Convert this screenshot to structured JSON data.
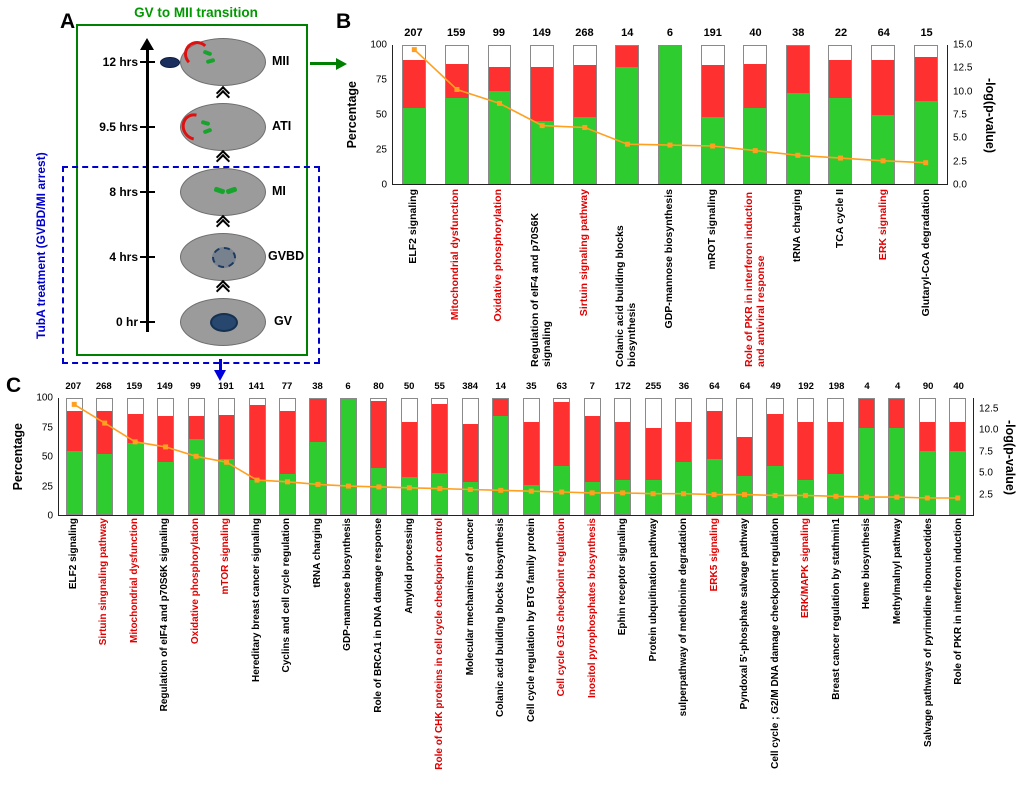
{
  "figure": {
    "panelA": {
      "panel_label": "A",
      "title": "GV to MII transition",
      "side_label": "TubA treatment  (GVBD/MI arrest)",
      "stages": [
        {
          "time": "12 hrs",
          "name": "MII"
        },
        {
          "time": "9.5 hrs",
          "name": "ATI"
        },
        {
          "time": "8 hrs",
          "name": "MI"
        },
        {
          "time": "4 hrs",
          "name": "GVBD"
        },
        {
          "time": "0 hr",
          "name": "GV"
        }
      ]
    },
    "panelB_label": "B",
    "panelC_label": "C"
  },
  "colors": {
    "green_bar": "#2ecc2e",
    "red_bar": "#ff3030",
    "white_bar": "#ffffff",
    "line": "#ffa020",
    "highlight_label": "#e00000",
    "panelA_green": "#008000",
    "panelA_blue": "#0000cd"
  },
  "chart_data": [
    {
      "id": "B",
      "type": "bar",
      "subtype": "stacked-percentage-bars-with-pvalue-line",
      "title": "",
      "ylabel": "Percentage",
      "y2label": "-log(p-value)",
      "ylim": [
        0,
        100
      ],
      "yticks": [
        0,
        25,
        50,
        75,
        100
      ],
      "y2lim": [
        0,
        15
      ],
      "y2ticks": [
        15.0,
        12.5,
        10.0,
        7.5,
        5.0,
        2.5,
        0.0
      ],
      "grid": false,
      "legend": "none",
      "bars": [
        {
          "label": "ELF2 signaling",
          "count": 207,
          "green": 55,
          "red": 35,
          "logp": 14.5,
          "red_label": false
        },
        {
          "label": "Mitochondrial dysfunction",
          "count": 159,
          "green": 62,
          "red": 25,
          "logp": 10.2,
          "red_label": true
        },
        {
          "label": "Oxidative phosphorylation",
          "count": 99,
          "green": 67,
          "red": 18,
          "logp": 8.7,
          "red_label": true
        },
        {
          "label": "Regulation of eIF4 and p70S6K signaling",
          "count": 149,
          "green": 45,
          "red": 40,
          "logp": 6.3,
          "red_label": false
        },
        {
          "label": "Sirtuin signaling pathway",
          "count": 268,
          "green": 48,
          "red": 38,
          "logp": 6.1,
          "red_label": true
        },
        {
          "label": "Colanic acid building blocks biosynthesis",
          "count": 14,
          "green": 85,
          "red": 15,
          "logp": 4.3,
          "red_label": false
        },
        {
          "label": "GDP-mannose biosynthesis",
          "count": 6,
          "green": 100,
          "red": 0,
          "logp": 4.2,
          "red_label": false
        },
        {
          "label": "mROT signaling",
          "count": 191,
          "green": 48,
          "red": 38,
          "logp": 4.1,
          "red_label": false
        },
        {
          "label": "Role of PKR in interferon induction and antiviral response",
          "count": 40,
          "green": 55,
          "red": 32,
          "logp": 3.6,
          "red_label": true
        },
        {
          "label": "tRNA charging",
          "count": 38,
          "green": 66,
          "red": 34,
          "logp": 3.1,
          "red_label": false
        },
        {
          "label": "TCA cycle II",
          "count": 22,
          "green": 62,
          "red": 28,
          "logp": 2.8,
          "red_label": false
        },
        {
          "label": "ERK signaling",
          "count": 64,
          "green": 50,
          "red": 40,
          "logp": 2.5,
          "red_label": true
        },
        {
          "label": "Glutaryl-CoA degradation",
          "count": 15,
          "green": 60,
          "red": 32,
          "logp": 2.3,
          "red_label": false
        }
      ]
    },
    {
      "id": "C",
      "type": "bar",
      "subtype": "stacked-percentage-bars-with-pvalue-line",
      "title": "",
      "ylabel": "Percentage",
      "y2label": "-log(p-value)",
      "ylim": [
        0,
        100
      ],
      "yticks": [
        0,
        25,
        50,
        75,
        100
      ],
      "y2lim": [
        0,
        13.75
      ],
      "y2ticks": [
        12.5,
        10.0,
        7.5,
        5.0,
        2.5
      ],
      "grid": false,
      "legend": "none",
      "bars": [
        {
          "label": "ELF2 signaling",
          "count": 207,
          "green": 55,
          "red": 35,
          "logp": 13.0,
          "red_label": false
        },
        {
          "label": "Sirtuin singnaling pathway",
          "count": 268,
          "green": 52,
          "red": 38,
          "logp": 10.8,
          "red_label": true
        },
        {
          "label": "Mitochondrial dysfunction",
          "count": 159,
          "green": 62,
          "red": 25,
          "logp": 8.6,
          "red_label": true
        },
        {
          "label": "Regulation of eIF4 and p70S6K signaling",
          "count": 149,
          "green": 45,
          "red": 40,
          "logp": 8.0,
          "red_label": false
        },
        {
          "label": "Oxidative phosphorylation",
          "count": 99,
          "green": 65,
          "red": 20,
          "logp": 6.9,
          "red_label": true
        },
        {
          "label": "mTOR signaling",
          "count": 191,
          "green": 48,
          "red": 38,
          "logp": 6.2,
          "red_label": true
        },
        {
          "label": "Hereditary breast cancer signaling",
          "count": 141,
          "green": 30,
          "red": 65,
          "logp": 4.1,
          "red_label": false
        },
        {
          "label": "Cyclins and cell cycle regulation",
          "count": 77,
          "green": 35,
          "red": 55,
          "logp": 3.9,
          "red_label": false
        },
        {
          "label": "tRNA charging",
          "count": 38,
          "green": 63,
          "red": 37,
          "logp": 3.6,
          "red_label": false
        },
        {
          "label": "GDP-mannose biosynthesis",
          "count": 6,
          "green": 100,
          "red": 0,
          "logp": 3.4,
          "red_label": false
        },
        {
          "label": "Role of BRCA1 in DNA damage response",
          "count": 80,
          "green": 40,
          "red": 58,
          "logp": 3.3,
          "red_label": false
        },
        {
          "label": "Amyloid processing",
          "count": 50,
          "green": 32,
          "red": 48,
          "logp": 3.2,
          "red_label": false
        },
        {
          "label": "Role of CHK proteins in cell cycle checkpoint control",
          "count": 55,
          "green": 36,
          "red": 60,
          "logp": 3.1,
          "red_label": true
        },
        {
          "label": "Molecular mechanisms of cancer",
          "count": 384,
          "green": 28,
          "red": 50,
          "logp": 3.0,
          "red_label": false
        },
        {
          "label": "Colanic acid building blocks biosynthesis",
          "count": 14,
          "green": 85,
          "red": 15,
          "logp": 2.9,
          "red_label": false
        },
        {
          "label": "Cell cycle regulation by BTG family protein",
          "count": 35,
          "green": 25,
          "red": 55,
          "logp": 2.8,
          "red_label": false
        },
        {
          "label": "Cell cycle G1/S checkpoint regulation",
          "count": 63,
          "green": 42,
          "red": 55,
          "logp": 2.7,
          "red_label": true
        },
        {
          "label": "Inositol pyrophosphates biosynthesis",
          "count": 7,
          "green": 28,
          "red": 57,
          "logp": 2.6,
          "red_label": true
        },
        {
          "label": "Ephin receptor signaling",
          "count": 172,
          "green": 30,
          "red": 50,
          "logp": 2.6,
          "red_label": false
        },
        {
          "label": "Protein ubquitination pathway",
          "count": 255,
          "green": 30,
          "red": 45,
          "logp": 2.5,
          "red_label": false
        },
        {
          "label": "sulperpathway of methionine degradation",
          "count": 36,
          "green": 45,
          "red": 35,
          "logp": 2.5,
          "red_label": false
        },
        {
          "label": "ERK5 signaling",
          "count": 64,
          "green": 48,
          "red": 42,
          "logp": 2.4,
          "red_label": true
        },
        {
          "label": "Pyndoxal 5'-phosphate salvage pathway",
          "count": 64,
          "green": 33,
          "red": 34,
          "logp": 2.4,
          "red_label": false
        },
        {
          "label": "Cell cycle ; G2/M DNA damage checkpoint regulation",
          "count": 49,
          "green": 42,
          "red": 45,
          "logp": 2.3,
          "red_label": false
        },
        {
          "label": "ERK/MAPK signaling",
          "count": 192,
          "green": 30,
          "red": 50,
          "logp": 2.3,
          "red_label": true
        },
        {
          "label": "Breast cancer regulation by stathmin1",
          "count": 198,
          "green": 35,
          "red": 45,
          "logp": 2.2,
          "red_label": false
        },
        {
          "label": "Heme biosynthesis",
          "count": 4,
          "green": 75,
          "red": 25,
          "logp": 2.1,
          "red_label": false
        },
        {
          "label": "Methylmalnyl pathway",
          "count": 4,
          "green": 75,
          "red": 25,
          "logp": 2.1,
          "red_label": false
        },
        {
          "label": "Salvage pathways of pyrimidine ribonucleotides",
          "count": 90,
          "green": 55,
          "red": 25,
          "logp": 2.0,
          "red_label": false
        },
        {
          "label": "Role of PKR in interferon induction",
          "count": 40,
          "green": 55,
          "red": 25,
          "logp": 2.0,
          "red_label": false
        }
      ]
    }
  ]
}
